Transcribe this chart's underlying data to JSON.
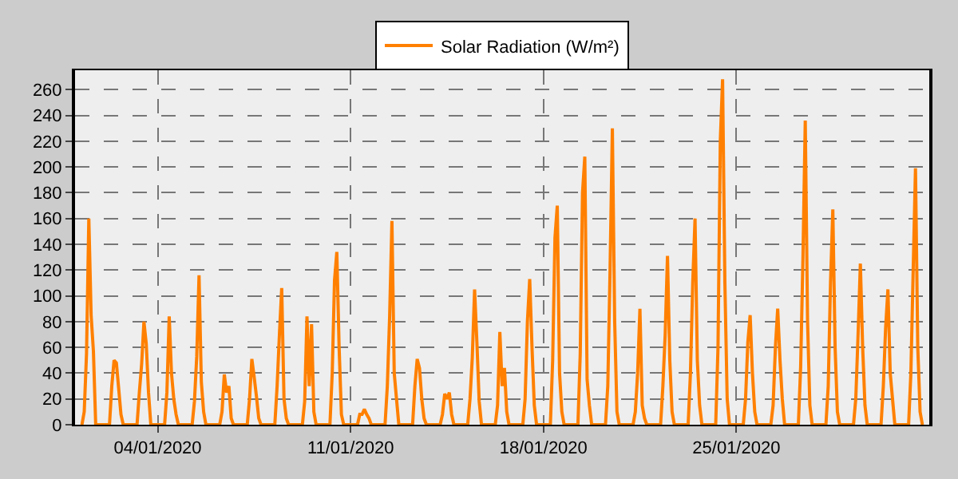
{
  "chart_data": {
    "type": "line",
    "x": [
      "2020-01-01T06:00",
      "2020-01-01T08:00",
      "2020-01-01T10:00",
      "2020-01-01T12:00",
      "2020-01-01T14:00",
      "2020-01-01T16:00",
      "2020-01-01T18:00",
      "2020-01-02T06:00",
      "2020-01-02T08:00",
      "2020-01-02T10:00",
      "2020-01-02T12:00",
      "2020-01-02T14:00",
      "2020-01-02T16:00",
      "2020-01-02T18:00",
      "2020-01-03T06:00",
      "2020-01-03T08:00",
      "2020-01-03T10:00",
      "2020-01-03T12:00",
      "2020-01-03T14:00",
      "2020-01-03T16:00",
      "2020-01-03T18:00",
      "2020-01-04T06:00",
      "2020-01-04T08:00",
      "2020-01-04T10:00",
      "2020-01-04T12:00",
      "2020-01-04T14:00",
      "2020-01-04T16:00",
      "2020-01-04T18:00",
      "2020-01-05T06:00",
      "2020-01-05T08:00",
      "2020-01-05T10:00",
      "2020-01-05T12:00",
      "2020-01-05T14:00",
      "2020-01-05T16:00",
      "2020-01-05T18:00",
      "2020-01-06T06:00",
      "2020-01-06T08:00",
      "2020-01-06T10:00",
      "2020-01-06T12:00",
      "2020-01-06T14:00",
      "2020-01-06T16:00",
      "2020-01-06T18:00",
      "2020-01-07T06:00",
      "2020-01-07T08:00",
      "2020-01-07T10:00",
      "2020-01-07T12:00",
      "2020-01-07T14:00",
      "2020-01-07T16:00",
      "2020-01-07T18:00",
      "2020-01-08T06:00",
      "2020-01-08T08:00",
      "2020-01-08T10:00",
      "2020-01-08T12:00",
      "2020-01-08T14:00",
      "2020-01-08T16:00",
      "2020-01-08T18:00",
      "2020-01-09T06:00",
      "2020-01-09T08:00",
      "2020-01-09T10:00",
      "2020-01-09T12:00",
      "2020-01-09T14:00",
      "2020-01-09T16:00",
      "2020-01-09T18:00",
      "2020-01-10T06:00",
      "2020-01-10T08:00",
      "2020-01-10T10:00",
      "2020-01-10T12:00",
      "2020-01-10T14:00",
      "2020-01-10T16:00",
      "2020-01-10T18:00",
      "2020-01-11T06:00",
      "2020-01-11T08:00",
      "2020-01-11T10:00",
      "2020-01-11T12:00",
      "2020-01-11T14:00",
      "2020-01-11T16:00",
      "2020-01-11T18:00",
      "2020-01-12T06:00",
      "2020-01-12T08:00",
      "2020-01-12T10:00",
      "2020-01-12T12:00",
      "2020-01-12T14:00",
      "2020-01-12T16:00",
      "2020-01-12T18:00",
      "2020-01-13T06:00",
      "2020-01-13T08:00",
      "2020-01-13T10:00",
      "2020-01-13T12:00",
      "2020-01-13T14:00",
      "2020-01-13T16:00",
      "2020-01-13T18:00",
      "2020-01-14T06:00",
      "2020-01-14T08:00",
      "2020-01-14T10:00",
      "2020-01-14T12:00",
      "2020-01-14T14:00",
      "2020-01-14T16:00",
      "2020-01-14T18:00",
      "2020-01-15T06:00",
      "2020-01-15T08:00",
      "2020-01-15T10:00",
      "2020-01-15T12:00",
      "2020-01-15T14:00",
      "2020-01-15T16:00",
      "2020-01-15T18:00",
      "2020-01-16T06:00",
      "2020-01-16T08:00",
      "2020-01-16T10:00",
      "2020-01-16T12:00",
      "2020-01-16T14:00",
      "2020-01-16T16:00",
      "2020-01-16T18:00",
      "2020-01-17T06:00",
      "2020-01-17T08:00",
      "2020-01-17T10:00",
      "2020-01-17T12:00",
      "2020-01-17T14:00",
      "2020-01-17T16:00",
      "2020-01-17T18:00",
      "2020-01-18T06:00",
      "2020-01-18T08:00",
      "2020-01-18T10:00",
      "2020-01-18T12:00",
      "2020-01-18T14:00",
      "2020-01-18T16:00",
      "2020-01-18T18:00",
      "2020-01-19T06:00",
      "2020-01-19T08:00",
      "2020-01-19T10:00",
      "2020-01-19T12:00",
      "2020-01-19T14:00",
      "2020-01-19T16:00",
      "2020-01-19T18:00",
      "2020-01-20T06:00",
      "2020-01-20T08:00",
      "2020-01-20T10:00",
      "2020-01-20T12:00",
      "2020-01-20T14:00",
      "2020-01-20T16:00",
      "2020-01-20T18:00",
      "2020-01-21T06:00",
      "2020-01-21T08:00",
      "2020-01-21T10:00",
      "2020-01-21T12:00",
      "2020-01-21T14:00",
      "2020-01-21T16:00",
      "2020-01-21T18:00",
      "2020-01-22T06:00",
      "2020-01-22T08:00",
      "2020-01-22T10:00",
      "2020-01-22T12:00",
      "2020-01-22T14:00",
      "2020-01-22T16:00",
      "2020-01-22T18:00",
      "2020-01-23T06:00",
      "2020-01-23T08:00",
      "2020-01-23T10:00",
      "2020-01-23T12:00",
      "2020-01-23T14:00",
      "2020-01-23T16:00",
      "2020-01-23T18:00",
      "2020-01-24T06:00",
      "2020-01-24T08:00",
      "2020-01-24T10:00",
      "2020-01-24T12:00",
      "2020-01-24T14:00",
      "2020-01-24T16:00",
      "2020-01-24T18:00",
      "2020-01-25T06:00",
      "2020-01-25T08:00",
      "2020-01-25T10:00",
      "2020-01-25T12:00",
      "2020-01-25T14:00",
      "2020-01-25T16:00",
      "2020-01-25T18:00",
      "2020-01-26T06:00",
      "2020-01-26T08:00",
      "2020-01-26T10:00",
      "2020-01-26T12:00",
      "2020-01-26T14:00",
      "2020-01-26T16:00",
      "2020-01-26T18:00",
      "2020-01-27T06:00",
      "2020-01-27T08:00",
      "2020-01-27T10:00",
      "2020-01-27T12:00",
      "2020-01-27T14:00",
      "2020-01-27T16:00",
      "2020-01-27T18:00",
      "2020-01-28T06:00",
      "2020-01-28T08:00",
      "2020-01-28T10:00",
      "2020-01-28T12:00",
      "2020-01-28T14:00",
      "2020-01-28T16:00",
      "2020-01-28T18:00",
      "2020-01-29T06:00",
      "2020-01-29T08:00",
      "2020-01-29T10:00",
      "2020-01-29T12:00",
      "2020-01-29T14:00",
      "2020-01-29T16:00",
      "2020-01-29T18:00",
      "2020-01-30T06:00",
      "2020-01-30T08:00",
      "2020-01-30T10:00",
      "2020-01-30T12:00",
      "2020-01-30T14:00",
      "2020-01-30T16:00",
      "2020-01-30T18:00",
      "2020-01-31T06:00",
      "2020-01-31T08:00",
      "2020-01-31T10:00",
      "2020-01-31T12:00",
      "2020-01-31T14:00",
      "2020-01-31T16:00",
      "2020-01-31T18:00"
    ],
    "series": [
      {
        "name": "Solar Radiation (W/m²)",
        "color": "#ff8000",
        "values": [
          0,
          10,
          55,
          160,
          85,
          57,
          0,
          0,
          30,
          50,
          48,
          28,
          8,
          0,
          0,
          25,
          47,
          80,
          63,
          25,
          0,
          0,
          25,
          84,
          40,
          20,
          8,
          0,
          0,
          18,
          53,
          116,
          33,
          10,
          0,
          0,
          10,
          39,
          25,
          30,
          5,
          0,
          0,
          20,
          51,
          37,
          22,
          5,
          0,
          0,
          30,
          70,
          106,
          20,
          5,
          0,
          0,
          18,
          84,
          30,
          78,
          10,
          0,
          0,
          40,
          112,
          134,
          60,
          8,
          0,
          0,
          8,
          8,
          12,
          8,
          5,
          0,
          0,
          30,
          84,
          158,
          40,
          20,
          0,
          0,
          30,
          51,
          44,
          20,
          5,
          0,
          0,
          8,
          24,
          20,
          25,
          8,
          0,
          0,
          20,
          52,
          105,
          64,
          18,
          0,
          0,
          15,
          72,
          30,
          44,
          10,
          0,
          0,
          20,
          80,
          113,
          60,
          15,
          0,
          0,
          50,
          145,
          170,
          40,
          10,
          0,
          0,
          55,
          180,
          208,
          35,
          15,
          0,
          0,
          30,
          120,
          230,
          80,
          10,
          0,
          0,
          10,
          40,
          90,
          15,
          5,
          0,
          0,
          30,
          70,
          131,
          50,
          10,
          0,
          0,
          40,
          110,
          160,
          50,
          15,
          0,
          0,
          60,
          220,
          268,
          110,
          20,
          0,
          0,
          20,
          64,
          85,
          40,
          10,
          0,
          0,
          15,
          60,
          90,
          50,
          20,
          0,
          0,
          45,
          130,
          236,
          80,
          15,
          0,
          0,
          30,
          110,
          167,
          60,
          10,
          0,
          0,
          20,
          70,
          125,
          60,
          15,
          0,
          0,
          30,
          75,
          105,
          40,
          20,
          0,
          0,
          40,
          120,
          199,
          60,
          10,
          0
        ]
      }
    ],
    "xlim": [
      "2020-01-01T00:00",
      "2020-02-01T00:00"
    ],
    "xticks": [
      {
        "value": "2020-01-04",
        "label": "04/01/2020"
      },
      {
        "value": "2020-01-11",
        "label": "11/01/2020"
      },
      {
        "value": "2020-01-18",
        "label": "18/01/2020"
      },
      {
        "value": "2020-01-25",
        "label": "25/01/2020"
      }
    ],
    "ylim": [
      0,
      275
    ],
    "yticks": [
      0,
      20,
      40,
      60,
      80,
      100,
      120,
      140,
      160,
      180,
      200,
      220,
      240,
      260
    ],
    "grid": true,
    "legend": "top",
    "marker": "none",
    "line_style": "solid"
  }
}
